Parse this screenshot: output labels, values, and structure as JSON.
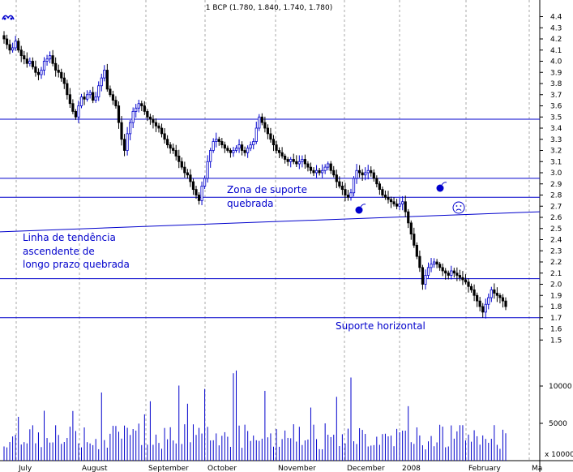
{
  "chart_data": {
    "type": "candlestick",
    "header": "1 BCP (1.780, 1.840, 1.740, 1.780)",
    "price_axis": {
      "ticks": [
        "4.4",
        "4.3",
        "4.2",
        "4.1",
        "4.0",
        "3.9",
        "3.8",
        "3.7",
        "3.6",
        "3.5",
        "3.4",
        "3.3",
        "3.2",
        "3.1",
        "3.0",
        "2.9",
        "2.8",
        "2.7",
        "2.6",
        "2.5",
        "2.4",
        "2.3",
        "2.2",
        "2.1",
        "2.0",
        "1.9",
        "1.8",
        "1.7",
        "1.6",
        "1.5"
      ],
      "range": [
        1.5,
        4.4
      ]
    },
    "volume_axis": {
      "ticks": [
        {
          "label": "10000",
          "value": 10000
        },
        {
          "label": "5000",
          "value": 5000
        }
      ],
      "unit_label": "x 10000",
      "max": 15000
    },
    "month_labels": [
      "July",
      "August",
      "September",
      "October",
      "November",
      "December",
      "2008",
      "February",
      "Ma"
    ],
    "support_lines": [
      {
        "level": 3.48
      },
      {
        "level": 2.95
      },
      {
        "level": 2.78
      },
      {
        "level": 2.05
      },
      {
        "level": 1.7
      }
    ],
    "trendline": {
      "start": 2.47,
      "end": 2.65
    },
    "annotations": [
      {
        "text": "Zona de suporte"
      },
      {
        "text": "quebrada"
      },
      {
        "text": "Linha de tendência"
      },
      {
        "text": "ascendente de"
      },
      {
        "text": "longo prazo quebrada"
      },
      {
        "text": "Suporte horizontal"
      }
    ],
    "colors": {
      "up": "#0000cc",
      "down": "#000000",
      "line": "#0000cc",
      "grid": "#aaaaaa",
      "volume": "#0000cc"
    },
    "price_series_approx": [
      4.2,
      4.15,
      4.1,
      4.12,
      4.18,
      4.1,
      4.05,
      4.02,
      3.98,
      4.0,
      3.95,
      3.9,
      3.88,
      3.92,
      4.0,
      4.02,
      4.05,
      3.98,
      3.92,
      3.9,
      3.85,
      3.8,
      3.7,
      3.62,
      3.55,
      3.5,
      3.6,
      3.68,
      3.66,
      3.7,
      3.72,
      3.65,
      3.68,
      3.78,
      3.85,
      3.92,
      3.75,
      3.7,
      3.65,
      3.6,
      3.45,
      3.3,
      3.2,
      3.35,
      3.45,
      3.55,
      3.58,
      3.62,
      3.6,
      3.55,
      3.5,
      3.48,
      3.45,
      3.42,
      3.4,
      3.35,
      3.3,
      3.25,
      3.22,
      3.2,
      3.15,
      3.1,
      3.05,
      3.0,
      2.98,
      2.92,
      2.85,
      2.8,
      2.75,
      2.88,
      2.95,
      3.1,
      3.2,
      3.28,
      3.3,
      3.28,
      3.25,
      3.22,
      3.2,
      3.18,
      3.2,
      3.22,
      3.25,
      3.2,
      3.18,
      3.22,
      3.25,
      3.28,
      3.4,
      3.5,
      3.45,
      3.4,
      3.35,
      3.3,
      3.25,
      3.2,
      3.18,
      3.15,
      3.12,
      3.1,
      3.12,
      3.1,
      3.08,
      3.1,
      3.12,
      3.08,
      3.05,
      3.02,
      3.0,
      3.02,
      3.0,
      3.02,
      3.05,
      3.08,
      3.02,
      2.98,
      2.92,
      2.88,
      2.85,
      2.8,
      2.78,
      2.82,
      2.95,
      3.02,
      3.0,
      2.98,
      3.0,
      3.02,
      3.0,
      2.95,
      2.9,
      2.85,
      2.8,
      2.78,
      2.76,
      2.74,
      2.72,
      2.7,
      2.72,
      2.74,
      2.65,
      2.55,
      2.45,
      2.35,
      2.25,
      2.15,
      2.0,
      2.08,
      2.15,
      2.18,
      2.2,
      2.18,
      2.15,
      2.12,
      2.1,
      2.08,
      2.12,
      2.1,
      2.08,
      2.06,
      2.04,
      2.02,
      1.98,
      1.95,
      1.9,
      1.85,
      1.8,
      1.75,
      1.82,
      1.88,
      1.95,
      1.92,
      1.9,
      1.88,
      1.85,
      1.8
    ]
  }
}
